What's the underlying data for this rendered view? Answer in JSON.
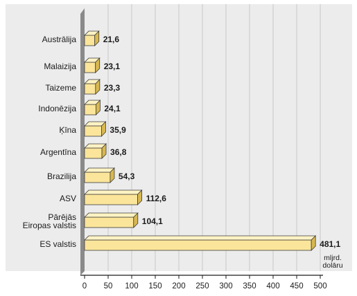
{
  "chart_data": {
    "type": "bar",
    "orientation": "horizontal",
    "categories": [
      "Austrālija",
      "Malaizija",
      "Taizeme",
      "Indonēzija",
      "Ķīna",
      "Argentīna",
      "Brazilija",
      "ASV",
      "Pārējās Eiropas valstis",
      "ES valstis"
    ],
    "category_lines": [
      [
        "Austrālija"
      ],
      [
        "Malaizija"
      ],
      [
        "Taizeme"
      ],
      [
        "Indonēzija"
      ],
      [
        "Ķīna"
      ],
      [
        "Argentīna"
      ],
      [
        "Brazilija"
      ],
      [
        "ASV"
      ],
      [
        "Pārējās",
        "Eiropas valstis"
      ],
      [
        "ES valstis"
      ]
    ],
    "values": [
      21.6,
      23.1,
      23.3,
      24.1,
      35.9,
      36.8,
      54.3,
      112.6,
      104.1,
      481.1
    ],
    "value_labels": [
      "21,6",
      "23,1",
      "23,3",
      "24,1",
      "35,9",
      "36,8",
      "54,3",
      "112,6",
      "104,1",
      "481,1"
    ],
    "x_ticks": [
      0,
      50,
      100,
      150,
      200,
      250,
      300,
      350,
      400,
      450,
      500
    ],
    "xlim": [
      0,
      500
    ],
    "unit_label": [
      "mljrd.",
      "dolāru"
    ],
    "grid": "vertical",
    "colors": {
      "background": "#ffffff",
      "plot_bg": "#ececec",
      "grid": "#c9c9c9",
      "baseline_band": "#8a8a8a",
      "bar_front": "#fbe59a",
      "bar_top": "#fff3c4",
      "bar_side": "#d8b850",
      "bar_stroke": "#3a3a3a",
      "axis": "#1a1a1a"
    }
  }
}
